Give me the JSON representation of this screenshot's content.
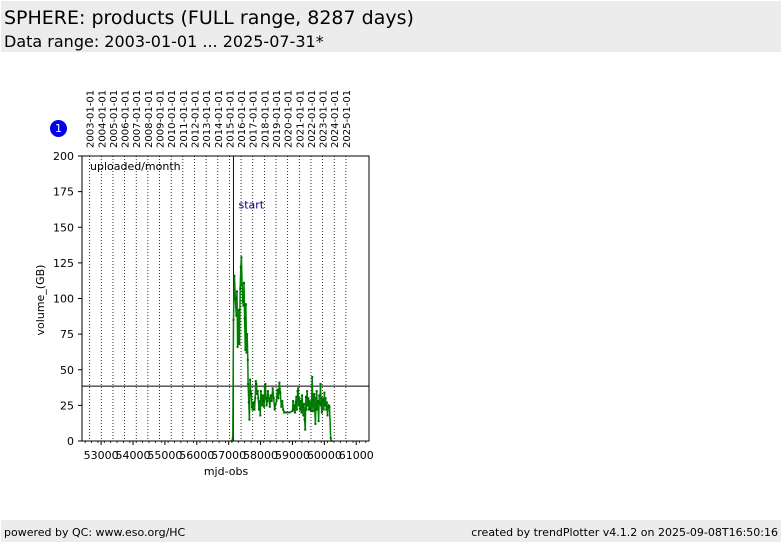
{
  "header": {
    "title": "SPHERE: products (FULL range, 8287 days)",
    "subtitle": "Data range: 2003-01-01 ... 2025-07-31*"
  },
  "badge": "1",
  "footer": {
    "left": "powered by QC: www.eso.org/HC",
    "right": "created by trendPlotter v4.1.2 on 2025-09-08T16:50:16"
  },
  "colors": {
    "header_bg": "#ececec",
    "series": "#008000",
    "marker": "#000080",
    "badge": "#0000ee"
  },
  "chart_data": {
    "type": "line",
    "title": "",
    "xlabel": "mjd-obs",
    "ylabel": "volume_(GB)",
    "xlim": [
      52400,
      61400
    ],
    "ylim": [
      0,
      200
    ],
    "xticks": [
      53000,
      54000,
      55000,
      56000,
      57000,
      58000,
      59000,
      60000,
      61000
    ],
    "xtick_labels": [
      "53000",
      "54000",
      "55000",
      "56000",
      "57000",
      "58000",
      "59000",
      "60000",
      "61000"
    ],
    "yticks": [
      0,
      25,
      50,
      75,
      100,
      125,
      150,
      175,
      200
    ],
    "ytick_labels": [
      "0",
      "25",
      "50",
      "75",
      "100",
      "125",
      "150",
      "175",
      "200"
    ],
    "grid": "vertical dotted lines at year starts",
    "year_markers": [
      {
        "label": "2003-01-01",
        "mjd": 52640
      },
      {
        "label": "2004-01-01",
        "mjd": 53005
      },
      {
        "label": "2005-01-01",
        "mjd": 53371
      },
      {
        "label": "2006-01-01",
        "mjd": 53736
      },
      {
        "label": "2007-01-01",
        "mjd": 54101
      },
      {
        "label": "2008-01-01",
        "mjd": 54466
      },
      {
        "label": "2009-01-01",
        "mjd": 54832
      },
      {
        "label": "2010-01-01",
        "mjd": 55197
      },
      {
        "label": "2011-01-01",
        "mjd": 55562
      },
      {
        "label": "2012-01-01",
        "mjd": 55927
      },
      {
        "label": "2013-01-01",
        "mjd": 56293
      },
      {
        "label": "2014-01-01",
        "mjd": 56658
      },
      {
        "label": "2015-01-01",
        "mjd": 57023
      },
      {
        "label": "2016-01-01",
        "mjd": 57388
      },
      {
        "label": "2017-01-01",
        "mjd": 57754
      },
      {
        "label": "2018-01-01",
        "mjd": 58119
      },
      {
        "label": "2019-01-01",
        "mjd": 58484
      },
      {
        "label": "2020-01-01",
        "mjd": 58849
      },
      {
        "label": "2021-01-01",
        "mjd": 59215
      },
      {
        "label": "2022-01-01",
        "mjd": 59580
      },
      {
        "label": "2023-01-01",
        "mjd": 59945
      },
      {
        "label": "2024-01-01",
        "mjd": 60310
      },
      {
        "label": "2025-01-01",
        "mjd": 60676
      }
    ],
    "annotations": {
      "series_label": "uploaded/month",
      "start_label": "start",
      "start_mjd": 57150,
      "reference_y": 38.5
    },
    "series": [
      {
        "values": [
          [
            57100,
            0
          ],
          [
            57130,
            2
          ],
          [
            57150,
            85
          ],
          [
            57180,
            116
          ],
          [
            57210,
            100
          ],
          [
            57240,
            88
          ],
          [
            57260,
            105
          ],
          [
            57280,
            66
          ],
          [
            57300,
            70
          ],
          [
            57320,
            92
          ],
          [
            57340,
            68
          ],
          [
            57360,
            107
          ],
          [
            57380,
            122
          ],
          [
            57400,
            129
          ],
          [
            57420,
            110
          ],
          [
            57440,
            98
          ],
          [
            57460,
            95
          ],
          [
            57480,
            111
          ],
          [
            57500,
            86
          ],
          [
            57520,
            64
          ],
          [
            57540,
            96
          ],
          [
            57560,
            62
          ],
          [
            57580,
            75
          ],
          [
            57600,
            57
          ],
          [
            57610,
            40
          ],
          [
            57630,
            27
          ],
          [
            57650,
            15
          ],
          [
            57670,
            43
          ],
          [
            57690,
            35
          ],
          [
            57710,
            33
          ],
          [
            57730,
            24
          ],
          [
            57750,
            22
          ],
          [
            57770,
            26
          ],
          [
            57790,
            27
          ],
          [
            57810,
            22
          ],
          [
            57830,
            30
          ],
          [
            57850,
            42
          ],
          [
            57870,
            40
          ],
          [
            57890,
            33
          ],
          [
            57910,
            35
          ],
          [
            57930,
            30
          ],
          [
            57950,
            22
          ],
          [
            57970,
            28
          ],
          [
            57990,
            18
          ],
          [
            58010,
            35
          ],
          [
            58030,
            30
          ],
          [
            58050,
            25
          ],
          [
            58070,
            32
          ],
          [
            58090,
            28
          ],
          [
            58110,
            24
          ],
          [
            58130,
            38
          ],
          [
            58150,
            40
          ],
          [
            58170,
            30
          ],
          [
            58190,
            25
          ],
          [
            58210,
            28
          ],
          [
            58230,
            35
          ],
          [
            58260,
            30
          ],
          [
            58290,
            24
          ],
          [
            58320,
            32
          ],
          [
            58350,
            28
          ],
          [
            58380,
            37
          ],
          [
            58410,
            30
          ],
          [
            58440,
            22
          ],
          [
            58470,
            26
          ],
          [
            58500,
            28
          ],
          [
            58530,
            36
          ],
          [
            58560,
            30
          ],
          [
            58590,
            41
          ],
          [
            58620,
            34
          ],
          [
            58650,
            24
          ],
          [
            58680,
            28
          ],
          [
            58710,
            22
          ],
          [
            58740,
            20
          ],
          [
            58800,
            20
          ],
          [
            58900,
            20
          ],
          [
            59000,
            21
          ],
          [
            59020,
            28
          ],
          [
            59040,
            22
          ],
          [
            59060,
            25
          ],
          [
            59080,
            20
          ],
          [
            59100,
            27
          ],
          [
            59120,
            31
          ],
          [
            59140,
            22
          ],
          [
            59160,
            35
          ],
          [
            59180,
            37
          ],
          [
            59200,
            25
          ],
          [
            59220,
            30
          ],
          [
            59240,
            22
          ],
          [
            59260,
            28
          ],
          [
            59280,
            20
          ],
          [
            59300,
            32
          ],
          [
            59320,
            24
          ],
          [
            59340,
            18
          ],
          [
            59360,
            26
          ],
          [
            59380,
            15
          ],
          [
            59400,
            8
          ],
          [
            59420,
            31
          ],
          [
            59440,
            22
          ],
          [
            59460,
            35
          ],
          [
            59480,
            25
          ],
          [
            59500,
            30
          ],
          [
            59520,
            22
          ],
          [
            59540,
            28
          ],
          [
            59560,
            23
          ],
          [
            59580,
            21
          ],
          [
            59600,
            26
          ],
          [
            59620,
            45
          ],
          [
            59640,
            21
          ],
          [
            59660,
            29
          ],
          [
            59680,
            33
          ],
          [
            59700,
            22
          ],
          [
            59720,
            12
          ],
          [
            59740,
            30
          ],
          [
            59760,
            35
          ],
          [
            59780,
            22
          ],
          [
            59800,
            28
          ],
          [
            59820,
            14
          ],
          [
            59840,
            32
          ],
          [
            59860,
            26
          ],
          [
            59880,
            40
          ],
          [
            59900,
            25
          ],
          [
            59920,
            20
          ],
          [
            59940,
            30
          ],
          [
            59960,
            28
          ],
          [
            59980,
            22
          ],
          [
            60000,
            34
          ],
          [
            60020,
            25
          ],
          [
            60040,
            30
          ],
          [
            60060,
            22
          ],
          [
            60080,
            27
          ],
          [
            60100,
            18
          ],
          [
            60120,
            24
          ],
          [
            60140,
            25
          ],
          [
            60160,
            24
          ],
          [
            60200,
            2
          ],
          [
            60220,
            0
          ]
        ]
      }
    ]
  }
}
